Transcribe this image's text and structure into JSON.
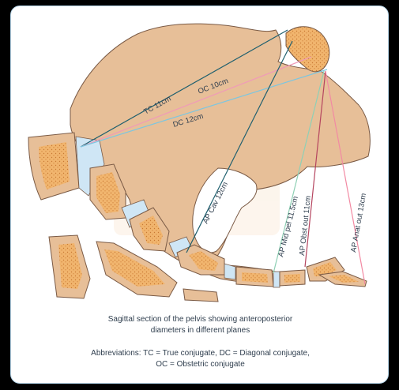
{
  "diagram": {
    "labels": {
      "tc": "TC 11cm",
      "oc": "OC 10cm",
      "dc": "DC 12cm",
      "ap_cav": "AP Cav 12cm",
      "ap_mid": "AP Mid pel 11.5cm",
      "ap_obst": "AP Obst out 11cm",
      "ap_anat": "AP Anat out 13cm"
    },
    "colors": {
      "bone": "#e7bf98",
      "bone_stroke": "#7a5a45",
      "marrow": "#f1b56e",
      "disc": "#cfe6f5",
      "tc_line": "#1e5f6e",
      "oc_line": "#f09ab8",
      "dc_line": "#7cc6e0",
      "ap_cav_line": "#1e5f6e",
      "ap_mid_line": "#8fd0b5",
      "ap_obst_line": "#b5455f",
      "ap_anat_line": "#f28aa3"
    }
  },
  "caption": {
    "line1": "Sagittal section of the pelvis showing anteroposterior",
    "line2": "diameters in different planes",
    "abbr1": "Abbreviations: TC = True conjugate, DC = Diagonal conjugate,",
    "abbr2": "OC = Obstetric conjugate"
  }
}
